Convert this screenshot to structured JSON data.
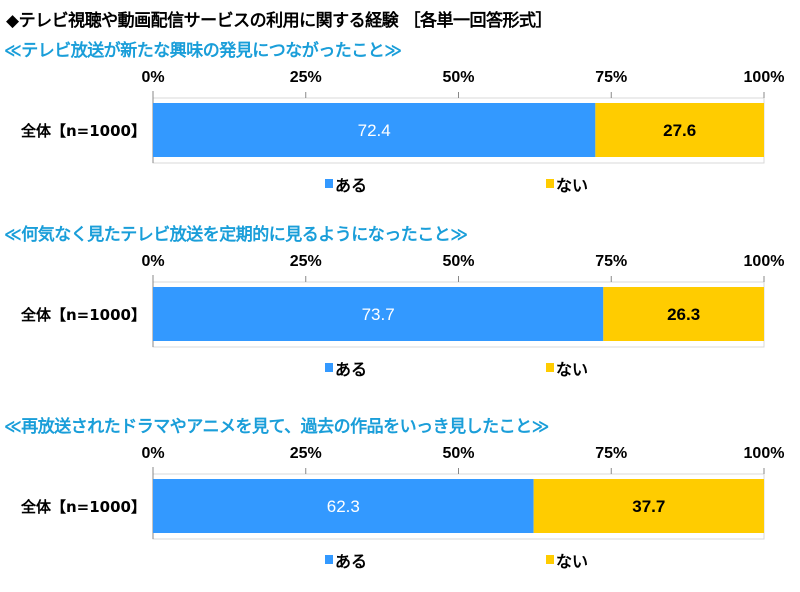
{
  "title": "◆テレビ視聴や動画配信サービスの利用に関する経験 ［各単一回答形式］",
  "colors": {
    "ある": "#3399ff",
    "ない": "#ffcc00",
    "subtitle": "#1a9ed9"
  },
  "chart_data": [
    {
      "type": "bar",
      "orientation": "horizontal-stacked-100",
      "title": "≪テレビ放送が新たな興味の発見につながったこと≫",
      "categories": [
        "全体【n=1000】"
      ],
      "series": [
        {
          "name": "ある",
          "values": [
            72.4
          ]
        },
        {
          "name": "ない",
          "values": [
            27.6
          ]
        }
      ],
      "xlim": [
        0,
        100
      ],
      "xticks": [
        "0%",
        "25%",
        "50%",
        "75%",
        "100%"
      ],
      "legend": "bottom"
    },
    {
      "type": "bar",
      "orientation": "horizontal-stacked-100",
      "title": "≪何気なく見たテレビ放送を定期的に見るようになったこと≫",
      "categories": [
        "全体【n=1000】"
      ],
      "series": [
        {
          "name": "ある",
          "values": [
            73.7
          ]
        },
        {
          "name": "ない",
          "values": [
            26.3
          ]
        }
      ],
      "xlim": [
        0,
        100
      ],
      "xticks": [
        "0%",
        "25%",
        "50%",
        "75%",
        "100%"
      ],
      "legend": "bottom"
    },
    {
      "type": "bar",
      "orientation": "horizontal-stacked-100",
      "title": "≪再放送されたドラマやアニメを見て、過去の作品をいっき見したこと≫",
      "categories": [
        "全体【n=1000】"
      ],
      "series": [
        {
          "name": "ある",
          "values": [
            62.3
          ]
        },
        {
          "name": "ない",
          "values": [
            37.7
          ]
        }
      ],
      "xlim": [
        0,
        100
      ],
      "xticks": [
        "0%",
        "25%",
        "50%",
        "75%",
        "100%"
      ],
      "legend": "bottom"
    }
  ]
}
